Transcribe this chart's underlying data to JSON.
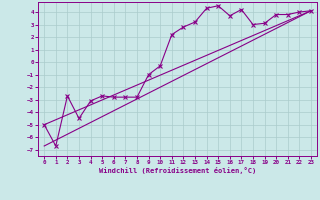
{
  "xlabel": "Windchill (Refroidissement éolien,°C)",
  "bg_color": "#cbe8e8",
  "grid_color": "#aacccc",
  "line_color": "#880088",
  "xlim": [
    -0.5,
    23.5
  ],
  "ylim": [
    -7.5,
    4.8
  ],
  "xticks": [
    0,
    1,
    2,
    3,
    4,
    5,
    6,
    7,
    8,
    9,
    10,
    11,
    12,
    13,
    14,
    15,
    16,
    17,
    18,
    19,
    20,
    21,
    22,
    23
  ],
  "yticks": [
    -7,
    -6,
    -5,
    -4,
    -3,
    -2,
    -1,
    0,
    1,
    2,
    3,
    4
  ],
  "scatter_x": [
    0,
    1,
    2,
    3,
    4,
    5,
    6,
    7,
    8,
    9,
    10,
    11,
    12,
    13,
    14,
    15,
    16,
    17,
    18,
    19,
    20,
    21,
    22,
    23
  ],
  "scatter_y": [
    -5.0,
    -6.7,
    -2.7,
    -4.5,
    -3.1,
    -2.7,
    -2.8,
    -2.8,
    -2.8,
    -1.0,
    -0.3,
    2.2,
    2.8,
    3.2,
    4.3,
    4.5,
    3.7,
    4.2,
    3.0,
    3.1,
    3.8,
    3.8,
    4.0,
    4.1
  ],
  "line1_x": [
    0,
    23
  ],
  "line1_y": [
    -5.0,
    4.1
  ],
  "line2_x": [
    0,
    23
  ],
  "line2_y": [
    -6.7,
    4.1
  ]
}
